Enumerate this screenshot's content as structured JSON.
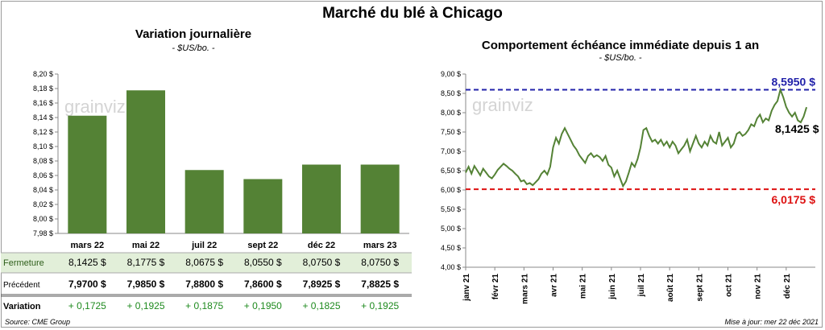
{
  "title": "Marché du blé à Chicago",
  "source": "Source: CME Group",
  "updated": "Mise à jour: mer 22 déc 2021",
  "watermark": "grainviz",
  "chart_data": [
    {
      "type": "bar",
      "title": "Variation journalière",
      "subtitle": "- $US/bo. -",
      "ylim": [
        7.98,
        8.2
      ],
      "yticks": [
        "8,20 $",
        "8,18 $",
        "8,16 $",
        "8,14 $",
        "8,12 $",
        "8,10 $",
        "8,08 $",
        "8,06 $",
        "8,04 $",
        "8,02 $",
        "8,00 $",
        "7,98 $"
      ],
      "categories": [
        "mars 22",
        "mai 22",
        "juil 22",
        "sept 22",
        "déc 22",
        "mars 23"
      ],
      "values": [
        8.1425,
        8.1775,
        8.0675,
        8.055,
        8.075,
        8.075
      ],
      "bar_color": "#548235",
      "table": {
        "rows": [
          {
            "label": "Fermeture",
            "cells": [
              "8,1425 $",
              "8,1775 $",
              "8,0675 $",
              "8,0550 $",
              "8,0750 $",
              "8,0750 $"
            ]
          },
          {
            "label": "Précédent",
            "cells": [
              "7,9700 $",
              "7,9850 $",
              "7,8800 $",
              "7,8600 $",
              "7,8925 $",
              "7,8825 $"
            ]
          },
          {
            "label": "Variation",
            "cells": [
              "+ 0,1725",
              "+ 0,1925",
              "+ 0,1875",
              "+ 0,1950",
              "+ 0,1825",
              "+ 0,1925"
            ]
          }
        ]
      }
    },
    {
      "type": "line",
      "title": "Comportement échéance immédiate depuis 1 an",
      "subtitle": "- $US/bo. -",
      "ylim": [
        4.0,
        9.0
      ],
      "yticks": [
        "9,00 $",
        "8,50 $",
        "8,00 $",
        "7,50 $",
        "7,00 $",
        "6,50 $",
        "6,00 $",
        "5,50 $",
        "5,00 $",
        "4,50 $",
        "4,00 $"
      ],
      "xticks": [
        "janv 21",
        "févr 21",
        "mars 21",
        "avr 21",
        "mai 21",
        "juin 21",
        "juil 21",
        "août 21",
        "sept 21",
        "oct 21",
        "nov 21",
        "déc 21"
      ],
      "line_color": "#548235",
      "max_line": {
        "value": 8.595,
        "label": "8,5950 $",
        "color": "#2222aa"
      },
      "min_line": {
        "value": 6.0175,
        "label": "6,0175 $",
        "color": "#dd1111"
      },
      "last_label": "8,1425 $",
      "x_range": [
        0,
        12
      ],
      "series": [
        {
          "x": [
            0,
            0.1,
            0.2,
            0.3,
            0.4,
            0.5,
            0.6,
            0.7,
            0.8,
            0.9,
            1.0,
            1.1,
            1.2,
            1.3,
            1.4,
            1.5,
            1.6,
            1.7,
            1.8,
            1.9,
            2.0,
            2.1,
            2.2,
            2.3,
            2.4,
            2.5,
            2.6,
            2.7,
            2.8,
            2.9,
            3.0,
            3.1,
            3.2,
            3.3,
            3.4,
            3.5,
            3.6,
            3.7,
            3.8,
            3.9,
            4.0,
            4.1,
            4.2,
            4.3,
            4.4,
            4.5,
            4.6,
            4.7,
            4.8,
            4.9,
            5.0,
            5.1,
            5.2,
            5.3,
            5.4,
            5.5,
            5.6,
            5.7,
            5.8,
            5.9,
            6.0,
            6.1,
            6.2,
            6.3,
            6.4,
            6.5,
            6.6,
            6.7,
            6.8,
            6.9,
            7.0,
            7.1,
            7.2,
            7.3,
            7.4,
            7.5,
            7.6,
            7.7,
            7.8,
            7.9,
            8.0,
            8.1,
            8.2,
            8.3,
            8.4,
            8.5,
            8.6,
            8.7,
            8.8,
            8.9,
            9.0,
            9.1,
            9.2,
            9.3,
            9.4,
            9.5,
            9.6,
            9.7,
            9.8,
            9.9,
            10.0,
            10.1,
            10.2,
            10.3,
            10.4,
            10.5,
            10.6,
            10.7,
            10.8,
            10.9,
            11.0,
            11.1,
            11.2,
            11.3,
            11.4,
            11.5,
            11.6,
            11.7
          ],
          "y": [
            6.45,
            6.6,
            6.42,
            6.62,
            6.5,
            6.38,
            6.55,
            6.45,
            6.35,
            6.3,
            6.4,
            6.52,
            6.6,
            6.68,
            6.62,
            6.55,
            6.5,
            6.42,
            6.35,
            6.22,
            6.25,
            6.15,
            6.18,
            6.12,
            6.2,
            6.28,
            6.42,
            6.5,
            6.4,
            6.6,
            7.1,
            7.35,
            7.2,
            7.45,
            7.6,
            7.45,
            7.3,
            7.15,
            7.05,
            6.9,
            6.8,
            6.7,
            6.88,
            6.95,
            6.85,
            6.9,
            6.85,
            6.75,
            6.88,
            6.65,
            6.58,
            6.35,
            6.5,
            6.3,
            6.1,
            6.22,
            6.45,
            6.7,
            6.6,
            6.8,
            7.1,
            7.55,
            7.6,
            7.4,
            7.25,
            7.3,
            7.2,
            7.3,
            7.15,
            7.25,
            7.1,
            7.25,
            7.15,
            6.95,
            7.05,
            7.15,
            7.3,
            7.0,
            7.2,
            7.4,
            7.2,
            7.1,
            7.25,
            7.15,
            7.4,
            7.25,
            7.2,
            7.5,
            7.15,
            7.25,
            7.35,
            7.1,
            7.2,
            7.45,
            7.5,
            7.4,
            7.45,
            7.55,
            7.7,
            7.65,
            7.85,
            7.95,
            7.75,
            7.85,
            7.8,
            8.05,
            8.2,
            8.3,
            8.595,
            8.4,
            8.15,
            8.0,
            7.9,
            8.0,
            7.8,
            7.75,
            7.9,
            8.1425
          ]
        }
      ]
    }
  ]
}
